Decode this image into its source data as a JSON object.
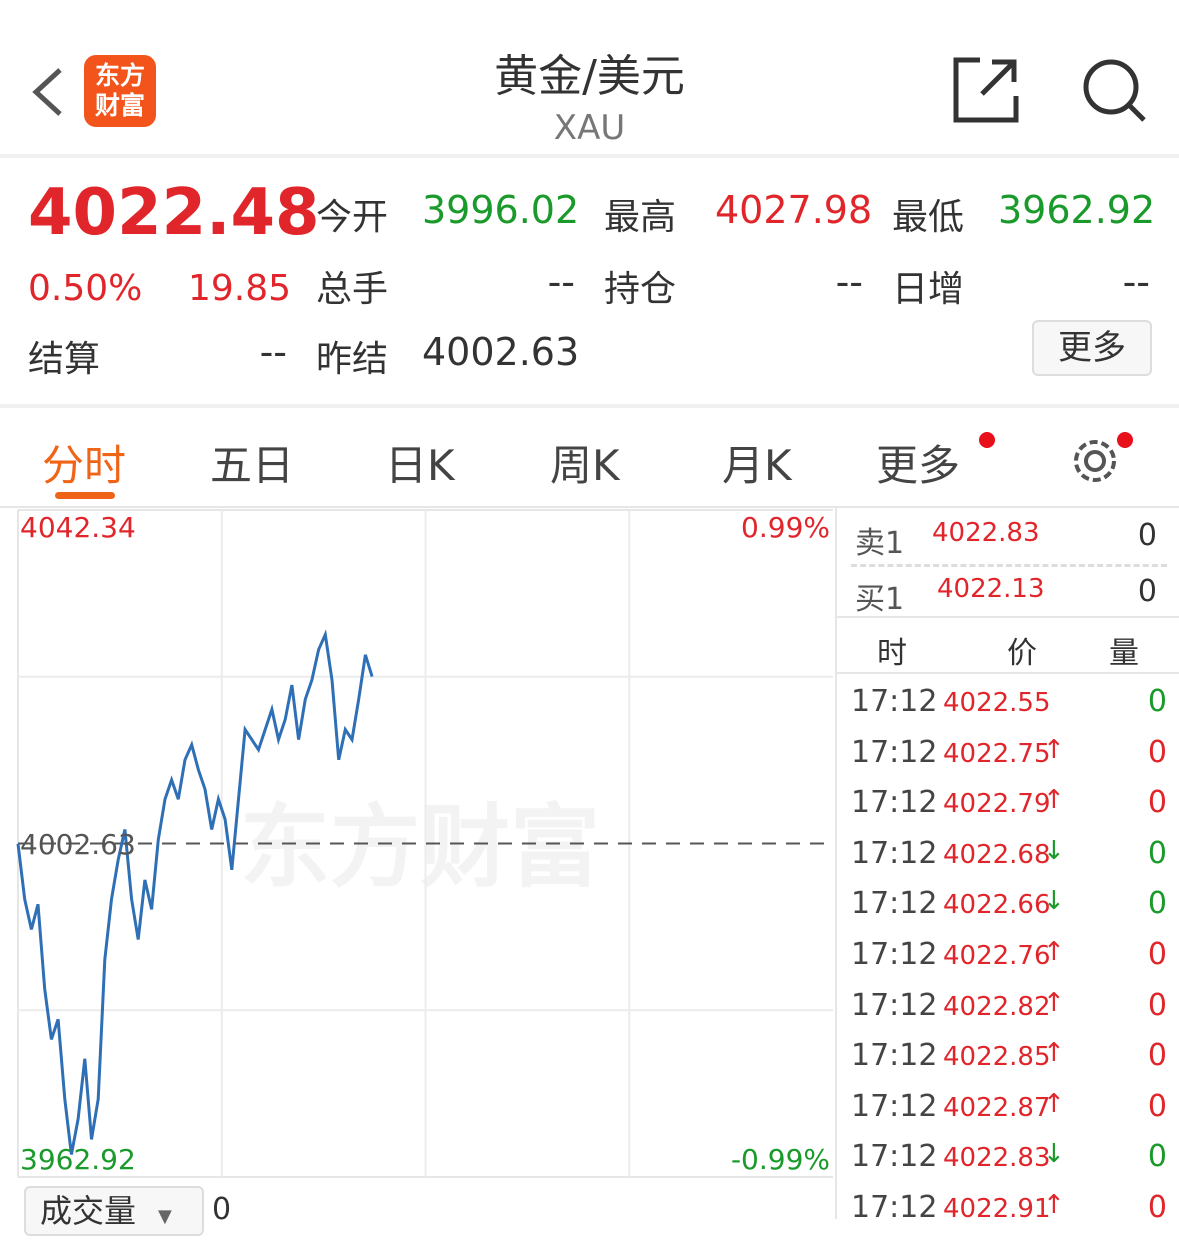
{
  "header": {
    "title": "黄金/美元",
    "subtitle": "XAU",
    "logo_text": "东方财富",
    "icons": [
      "back-icon",
      "share-icon",
      "search-icon"
    ]
  },
  "quote": {
    "price": "4022.48",
    "change_pct": "0.50%",
    "change": "19.85",
    "fields": [
      {
        "label": "今开",
        "value": "3996.02",
        "color": "green"
      },
      {
        "label": "最高",
        "value": "4027.98",
        "color": "red"
      },
      {
        "label": "最低",
        "value": "3962.92",
        "color": "green"
      },
      {
        "label": "总手",
        "value": "--",
        "color": "dark"
      },
      {
        "label": "持仓",
        "value": "--",
        "color": "dark"
      },
      {
        "label": "日增",
        "value": "--",
        "color": "dark"
      },
      {
        "label": "结算",
        "value": "--",
        "color": "dark"
      },
      {
        "label": "昨结",
        "value": "4002.63",
        "color": "dark"
      }
    ],
    "more_button": "更多"
  },
  "tabs": [
    {
      "label": "分时",
      "active": true
    },
    {
      "label": "五日"
    },
    {
      "label": "日K"
    },
    {
      "label": "周K"
    },
    {
      "label": "月K"
    },
    {
      "label": "更多"
    }
  ],
  "chart_data": {
    "type": "line",
    "ylim": [
      3962.92,
      4042.34
    ],
    "reference": 4002.63,
    "left_labels": {
      "top": "4042.34",
      "mid": "4002.63",
      "bottom": "3962.92"
    },
    "right_labels": {
      "top": "0.99%",
      "bottom": "-0.99%"
    },
    "watermark": "东方财富",
    "line_color": "#2f6fb5",
    "values": [
      4002.6,
      3996,
      3992.4,
      3995.4,
      3985.3,
      3979.3,
      3981.7,
      3972.2,
      3965.6,
      3969.8,
      3977,
      3967.4,
      3972.2,
      3988.8,
      3996,
      4000.7,
      4004.3,
      3996,
      3991.2,
      3998.3,
      3994.8,
      4003.1,
      4007.9,
      4010.2,
      4007.9,
      4012.6,
      4014.4,
      4011.4,
      4009.1,
      4004.3,
      4007.9,
      4005.5,
      3999.5,
      4007.9,
      4016.2,
      4015,
      4013.8,
      4016.2,
      4018.6,
      4015,
      4017.4,
      4021.5,
      4015,
      4019.8,
      4022.1,
      4025.7,
      4027.5,
      4022.1,
      4012.6,
      4016.2,
      4015,
      4019.8,
      4025.1,
      4022.5
    ]
  },
  "volume": {
    "selector": "成交量",
    "value": "0"
  },
  "orderbook": {
    "sell": {
      "label": "卖1",
      "price": "4022.83",
      "qty": "0"
    },
    "buy": {
      "label": "买1",
      "price": "4022.13",
      "qty": "0"
    }
  },
  "ticks_header": [
    "时",
    "价",
    "量"
  ],
  "ticks": [
    {
      "time": "17:12",
      "price": "4022.55",
      "arrow": "",
      "qty": "0",
      "qcolor": "green"
    },
    {
      "time": "17:12",
      "price": "4022.75",
      "arrow": "↑",
      "qty": "0",
      "qcolor": "red"
    },
    {
      "time": "17:12",
      "price": "4022.79",
      "arrow": "↑",
      "qty": "0",
      "qcolor": "red"
    },
    {
      "time": "17:12",
      "price": "4022.68",
      "arrow": "↓",
      "qty": "0",
      "qcolor": "green"
    },
    {
      "time": "17:12",
      "price": "4022.66",
      "arrow": "↓",
      "qty": "0",
      "qcolor": "green"
    },
    {
      "time": "17:12",
      "price": "4022.76",
      "arrow": "↑",
      "qty": "0",
      "qcolor": "red"
    },
    {
      "time": "17:12",
      "price": "4022.82",
      "arrow": "↑",
      "qty": "0",
      "qcolor": "red"
    },
    {
      "time": "17:12",
      "price": "4022.85",
      "arrow": "↑",
      "qty": "0",
      "qcolor": "red"
    },
    {
      "time": "17:12",
      "price": "4022.87",
      "arrow": "↑",
      "qty": "0",
      "qcolor": "red"
    },
    {
      "time": "17:12",
      "price": "4022.83",
      "arrow": "↓",
      "qty": "0",
      "qcolor": "green"
    },
    {
      "time": "17:12",
      "price": "4022.91",
      "arrow": "↑",
      "qty": "0",
      "qcolor": "red"
    }
  ]
}
